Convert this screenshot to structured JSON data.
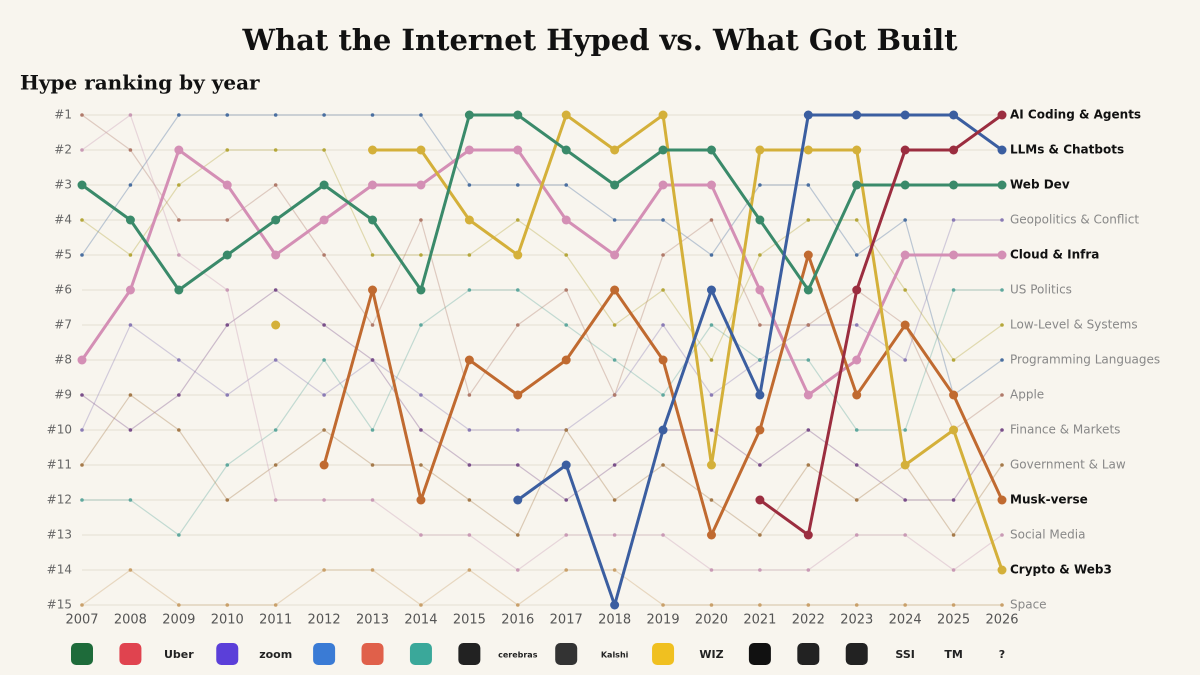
{
  "chart_data": {
    "type": "bump",
    "title": "What the Internet Hyped vs. What Got Built",
    "subtitle": "Hype ranking by year",
    "x": [
      2007,
      2008,
      2009,
      2010,
      2011,
      2012,
      2013,
      2014,
      2015,
      2016,
      2017,
      2018,
      2019,
      2020,
      2021,
      2022,
      2023,
      2024,
      2025,
      2026
    ],
    "xlim": [
      2007,
      2026
    ],
    "xticks": [
      2007,
      2008,
      2009,
      2010,
      2011,
      2012,
      2013,
      2014,
      2015,
      2016,
      2017,
      2018,
      2019,
      2020,
      2021,
      2022,
      2023,
      2024,
      2025,
      2026
    ],
    "ylim": [
      15,
      1
    ],
    "yticks": [
      {
        "value": 1,
        "label": "#1"
      },
      {
        "value": 2,
        "label": "#2"
      },
      {
        "value": 3,
        "label": "#3"
      },
      {
        "value": 4,
        "label": "#4"
      },
      {
        "value": 5,
        "label": "#5"
      },
      {
        "value": 6,
        "label": "#6"
      },
      {
        "value": 7,
        "label": "#7"
      },
      {
        "value": 8,
        "label": "#8"
      },
      {
        "value": 9,
        "label": "#9"
      },
      {
        "value": 10,
        "label": "#10"
      },
      {
        "value": 11,
        "label": "#11"
      },
      {
        "value": 12,
        "label": "#12"
      },
      {
        "value": 13,
        "label": "#13"
      },
      {
        "value": 14,
        "label": "#14"
      },
      {
        "value": 15,
        "label": "#15"
      }
    ],
    "grid": true,
    "series": [
      {
        "name": "Geopolitics & Conflict",
        "color": "#8a7bb5",
        "emphasis": false,
        "values": [
          10,
          7,
          8,
          9,
          8,
          9,
          8,
          9,
          10,
          10,
          10,
          9,
          7,
          9,
          8,
          7,
          7,
          8,
          4,
          4
        ]
      },
      {
        "name": "US Politics",
        "color": "#5fa89e",
        "emphasis": false,
        "values": [
          12,
          12,
          13,
          11,
          10,
          8,
          10,
          7,
          6,
          6,
          7,
          8,
          9,
          7,
          8,
          8,
          10,
          10,
          6,
          6
        ]
      },
      {
        "name": "Low-Level & Systems",
        "color": "#b5a73a",
        "emphasis": false,
        "values": [
          4,
          5,
          3,
          2,
          2,
          2,
          5,
          5,
          5,
          4,
          5,
          7,
          6,
          8,
          5,
          4,
          4,
          6,
          8,
          7
        ]
      },
      {
        "name": "Programming Languages",
        "color": "#4a6fa0",
        "emphasis": false,
        "values": [
          5,
          3,
          1,
          1,
          1,
          1,
          1,
          1,
          3,
          3,
          3,
          4,
          4,
          5,
          3,
          3,
          5,
          4,
          9,
          8
        ]
      },
      {
        "name": "Apple",
        "color": "#b07a6a",
        "emphasis": false,
        "values": [
          1,
          2,
          4,
          4,
          3,
          5,
          7,
          4,
          9,
          7,
          6,
          9,
          5,
          4,
          7,
          7,
          6,
          7,
          10,
          9
        ]
      },
      {
        "name": "Finance & Markets",
        "color": "#7a4f8a",
        "emphasis": false,
        "values": [
          9,
          10,
          9,
          7,
          6,
          7,
          8,
          10,
          11,
          11,
          12,
          11,
          10,
          10,
          11,
          10,
          11,
          12,
          12,
          10
        ]
      },
      {
        "name": "Government & Law",
        "color": "#a57a4a",
        "emphasis": false,
        "values": [
          11,
          9,
          10,
          12,
          11,
          10,
          11,
          11,
          12,
          13,
          10,
          12,
          11,
          12,
          13,
          11,
          12,
          11,
          13,
          11
        ]
      },
      {
        "name": "Social Media",
        "color": "#c99ab5",
        "emphasis": false,
        "values": [
          2,
          1,
          5,
          6,
          12,
          12,
          12,
          13,
          13,
          14,
          13,
          13,
          13,
          14,
          14,
          14,
          13,
          13,
          14,
          13
        ]
      },
      {
        "name": "Space",
        "color": "#c9a06a",
        "emphasis": false,
        "values": [
          15,
          14,
          15,
          15,
          15,
          14,
          14,
          15,
          14,
          15,
          14,
          14,
          15,
          15,
          15,
          15,
          15,
          15,
          15,
          15
        ]
      },
      {
        "name": "Cloud & Infra",
        "color": "#d48fb5",
        "emphasis": true,
        "values": [
          8,
          6,
          2,
          3,
          5,
          4,
          3,
          3,
          2,
          2,
          4,
          5,
          3,
          3,
          6,
          9,
          8,
          5,
          5,
          5
        ]
      },
      {
        "name": "Musk-verse",
        "color": "#c06a30",
        "emphasis": true,
        "values": [
          null,
          null,
          null,
          null,
          null,
          11,
          6,
          12,
          8,
          9,
          8,
          6,
          8,
          13,
          10,
          5,
          9,
          7,
          9,
          12
        ]
      },
      {
        "name": "Crypto & Web3",
        "color": "#d4b03a",
        "emphasis": true,
        "values": [
          null,
          null,
          null,
          null,
          7,
          null,
          2,
          2,
          4,
          5,
          1,
          2,
          1,
          11,
          2,
          2,
          2,
          11,
          10,
          14
        ]
      },
      {
        "name": "Web Dev",
        "color": "#3a8a6a",
        "emphasis": true,
        "values": [
          3,
          4,
          6,
          5,
          4,
          3,
          4,
          6,
          1,
          1,
          2,
          3,
          2,
          2,
          4,
          6,
          3,
          3,
          3,
          3
        ]
      },
      {
        "name": "LLMs & Chatbots",
        "color": "#3b5ea0",
        "emphasis": true,
        "values": [
          null,
          null,
          null,
          null,
          null,
          null,
          null,
          null,
          null,
          12,
          11,
          15,
          10,
          6,
          9,
          1,
          1,
          1,
          1,
          2
        ]
      },
      {
        "name": "AI Coding & Agents",
        "color": "#9b2d3f",
        "emphasis": true,
        "values": [
          null,
          null,
          null,
          null,
          null,
          null,
          null,
          null,
          null,
          null,
          null,
          null,
          null,
          null,
          12,
          13,
          6,
          2,
          2,
          1
        ]
      }
    ]
  },
  "logos": [
    null,
    null,
    "Uber",
    null,
    "zoom",
    null,
    null,
    null,
    null,
    "cerebras",
    null,
    "Kalshi",
    null,
    "WIZ",
    null,
    null,
    null,
    "SSI",
    "TM",
    "?"
  ]
}
